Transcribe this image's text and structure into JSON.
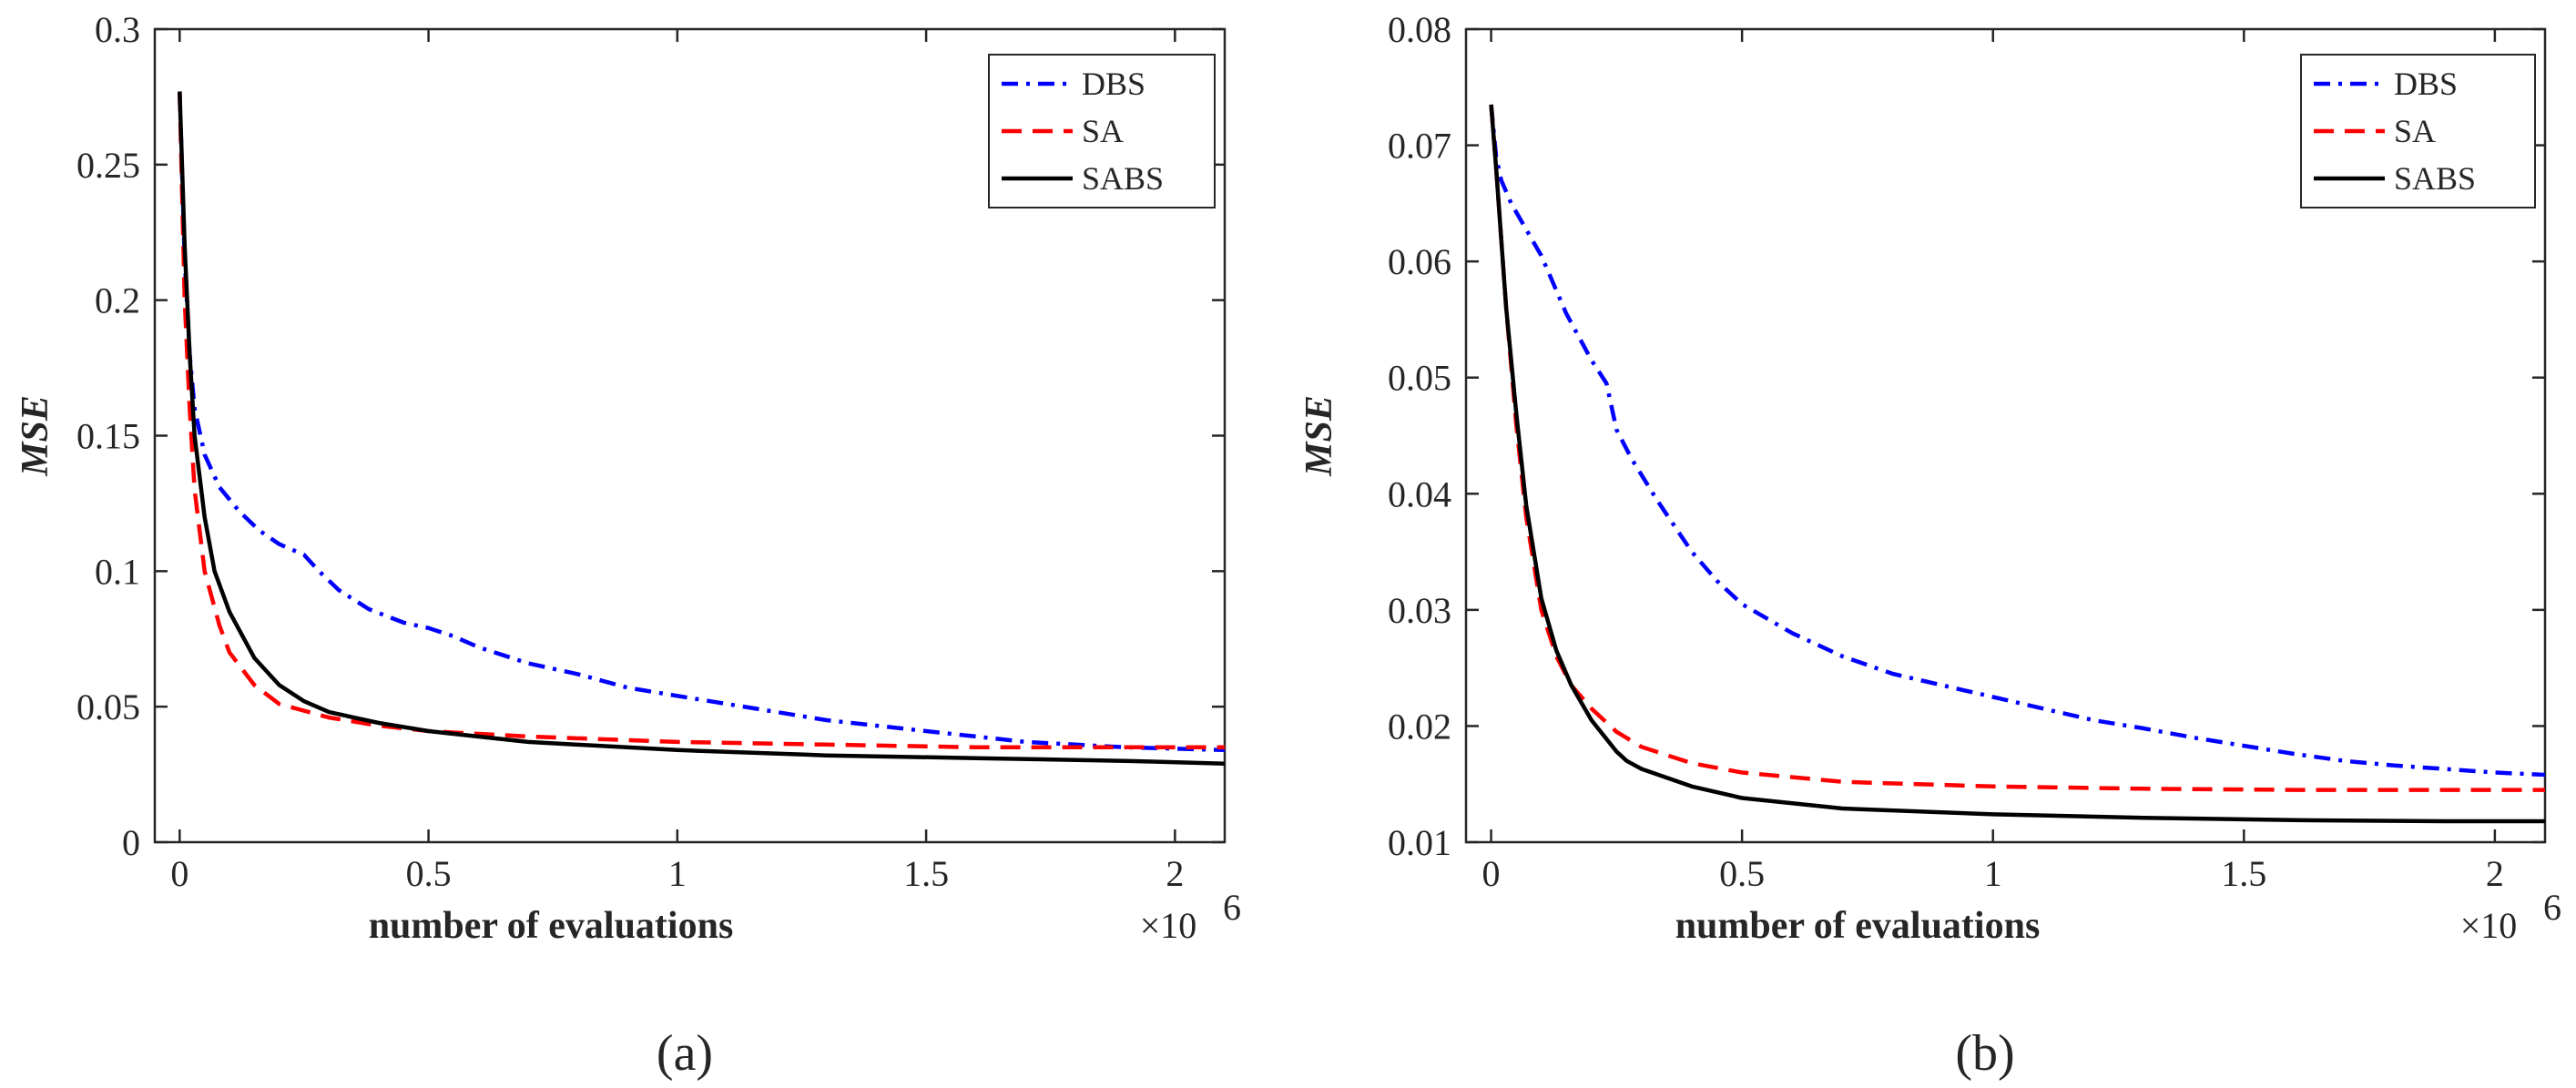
{
  "chart_data": [
    {
      "type": "line",
      "caption": "(a)",
      "xlabel": "number of evaluations",
      "ylabel": "MSE",
      "x_multiplier": "×10",
      "x_multiplier_exp": "6",
      "xlim": [
        -0.05,
        2.1
      ],
      "ylim": [
        0,
        0.3
      ],
      "xticks": [
        0,
        0.5,
        1,
        1.5,
        2
      ],
      "xtick_labels": [
        "0",
        "0.5",
        "1",
        "1.5",
        "2"
      ],
      "yticks": [
        0,
        0.05,
        0.1,
        0.15,
        0.2,
        0.25,
        0.3
      ],
      "ytick_labels": [
        "0",
        "0.05",
        "0.1",
        "0.15",
        "0.2",
        "0.25",
        "0.3"
      ],
      "legend_position": "top-right",
      "series": [
        {
          "name": "DBS",
          "color": "#0000ff",
          "dash": "dashdot",
          "x": [
            0,
            0.01,
            0.02,
            0.03,
            0.05,
            0.08,
            0.12,
            0.16,
            0.2,
            0.25,
            0.28,
            0.32,
            0.38,
            0.45,
            0.5,
            0.55,
            0.6,
            0.7,
            0.8,
            0.9,
            1.0,
            1.1,
            1.2,
            1.3,
            1.4,
            1.5,
            1.6,
            1.7,
            1.8,
            1.9,
            2.0,
            2.1
          ],
          "y": [
            0.277,
            0.215,
            0.18,
            0.16,
            0.143,
            0.131,
            0.122,
            0.115,
            0.11,
            0.106,
            0.1,
            0.093,
            0.086,
            0.081,
            0.079,
            0.076,
            0.072,
            0.066,
            0.062,
            0.057,
            0.054,
            0.051,
            0.048,
            0.045,
            0.043,
            0.041,
            0.039,
            0.037,
            0.036,
            0.035,
            0.0345,
            0.034
          ]
        },
        {
          "name": "SA",
          "color": "#ff0000",
          "dash": "dashed",
          "x": [
            0,
            0.01,
            0.02,
            0.03,
            0.05,
            0.08,
            0.1,
            0.15,
            0.2,
            0.3,
            0.4,
            0.5,
            0.7,
            1.0,
            1.3,
            1.6,
            1.9,
            2.1
          ],
          "y": [
            0.277,
            0.2,
            0.16,
            0.13,
            0.1,
            0.08,
            0.07,
            0.058,
            0.051,
            0.046,
            0.043,
            0.041,
            0.039,
            0.037,
            0.036,
            0.035,
            0.035,
            0.035
          ]
        },
        {
          "name": "SABS",
          "color": "#000000",
          "dash": "solid",
          "x": [
            0,
            0.01,
            0.02,
            0.03,
            0.05,
            0.07,
            0.1,
            0.15,
            0.2,
            0.25,
            0.3,
            0.4,
            0.5,
            0.7,
            1.0,
            1.3,
            1.6,
            1.9,
            2.1
          ],
          "y": [
            0.277,
            0.22,
            0.18,
            0.15,
            0.12,
            0.1,
            0.085,
            0.068,
            0.058,
            0.052,
            0.048,
            0.044,
            0.041,
            0.037,
            0.034,
            0.032,
            0.031,
            0.03,
            0.029
          ]
        }
      ]
    },
    {
      "type": "line",
      "caption": "(b)",
      "xlabel": "number of evaluations",
      "ylabel": "MSE",
      "x_multiplier": "×10",
      "x_multiplier_exp": "6",
      "xlim": [
        -0.05,
        2.1
      ],
      "ylim": [
        0.01,
        0.08
      ],
      "xticks": [
        0,
        0.5,
        1,
        1.5,
        2
      ],
      "xtick_labels": [
        "0",
        "0.5",
        "1",
        "1.5",
        "2"
      ],
      "yticks": [
        0.01,
        0.02,
        0.03,
        0.04,
        0.05,
        0.06,
        0.07,
        0.08
      ],
      "ytick_labels": [
        "0.01",
        "0.02",
        "0.03",
        "0.04",
        "0.05",
        "0.06",
        "0.07",
        "0.08"
      ],
      "legend_position": "top-right",
      "series": [
        {
          "name": "DBS",
          "color": "#0000ff",
          "dash": "dashdot",
          "x": [
            0,
            0.01,
            0.02,
            0.04,
            0.06,
            0.1,
            0.15,
            0.2,
            0.23,
            0.25,
            0.28,
            0.33,
            0.4,
            0.45,
            0.5,
            0.6,
            0.7,
            0.8,
            0.9,
            1.0,
            1.1,
            1.2,
            1.3,
            1.4,
            1.5,
            1.6,
            1.7,
            1.8,
            1.9,
            2.0,
            2.1
          ],
          "y": [
            0.0735,
            0.069,
            0.067,
            0.065,
            0.0635,
            0.0605,
            0.0555,
            0.0515,
            0.0495,
            0.0455,
            0.043,
            0.0395,
            0.035,
            0.0325,
            0.0305,
            0.028,
            0.026,
            0.0245,
            0.0235,
            0.0225,
            0.0215,
            0.0205,
            0.0198,
            0.019,
            0.0183,
            0.0176,
            0.017,
            0.0166,
            0.0163,
            0.016,
            0.0158
          ]
        },
        {
          "name": "SA",
          "color": "#ff0000",
          "dash": "dashed",
          "x": [
            0,
            0.01,
            0.02,
            0.03,
            0.05,
            0.07,
            0.1,
            0.13,
            0.16,
            0.2,
            0.25,
            0.3,
            0.4,
            0.5,
            0.7,
            1.0,
            1.3,
            1.6,
            1.9,
            2.1
          ],
          "y": [
            0.0735,
            0.068,
            0.062,
            0.056,
            0.046,
            0.038,
            0.03,
            0.026,
            0.0235,
            0.0215,
            0.0195,
            0.0182,
            0.0168,
            0.016,
            0.0152,
            0.0148,
            0.0146,
            0.0145,
            0.0145,
            0.0145
          ]
        },
        {
          "name": "SABS",
          "color": "#000000",
          "dash": "solid",
          "x": [
            0,
            0.01,
            0.02,
            0.03,
            0.05,
            0.07,
            0.1,
            0.13,
            0.16,
            0.2,
            0.25,
            0.27,
            0.3,
            0.4,
            0.5,
            0.7,
            1.0,
            1.3,
            1.6,
            1.9,
            2.1
          ],
          "y": [
            0.0735,
            0.068,
            0.062,
            0.056,
            0.047,
            0.039,
            0.031,
            0.0265,
            0.0235,
            0.0205,
            0.0178,
            0.017,
            0.0163,
            0.0148,
            0.0138,
            0.0129,
            0.0124,
            0.0121,
            0.0119,
            0.0118,
            0.0118
          ]
        }
      ]
    }
  ]
}
